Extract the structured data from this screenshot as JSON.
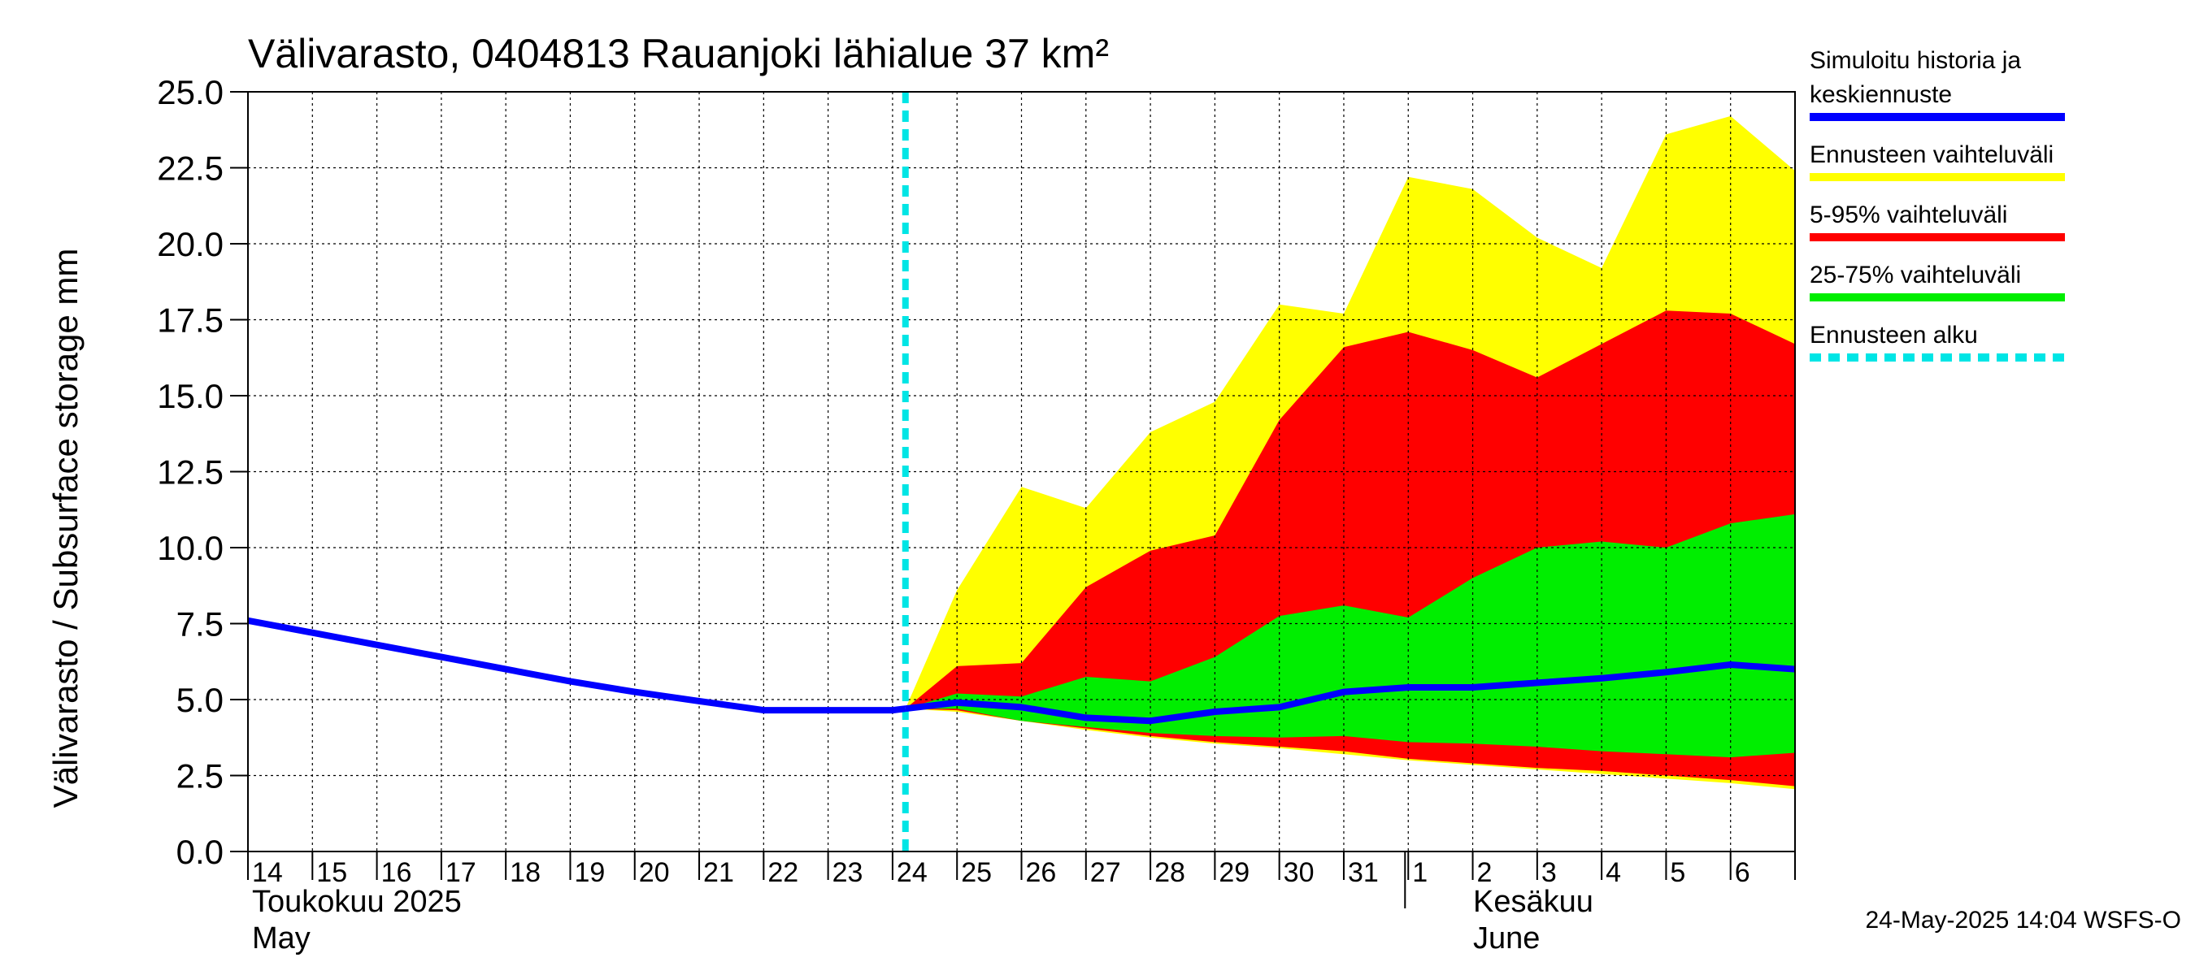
{
  "chart_data": {
    "type": "area",
    "title": "Välivarasto, 0404813 Rauanjoki lähialue 37 km²",
    "ylabel": "Välivarasto / Subsurface storage  mm",
    "ylim": [
      0,
      25
    ],
    "xlim": [
      0,
      24
    ],
    "yticks": [
      "0.0",
      "2.5",
      "5.0",
      "7.5",
      "10.0",
      "12.5",
      "15.0",
      "17.5",
      "20.0",
      "22.5",
      "25.0"
    ],
    "day_labels": [
      "14",
      "15",
      "16",
      "17",
      "18",
      "19",
      "20",
      "21",
      "22",
      "23",
      "24",
      "25",
      "26",
      "27",
      "28",
      "29",
      "30",
      "31",
      "1",
      "2",
      "3",
      "4",
      "5",
      "6"
    ],
    "month_labels": {
      "may_fi": "Toukokuu  2025",
      "may_en": "May",
      "june_fi": "Kesäkuu",
      "june_en": "June"
    },
    "forecast_start_day": 10.2,
    "history": {
      "x": [
        0,
        1,
        2,
        3,
        4,
        5,
        6,
        7,
        8,
        9,
        10,
        10.2
      ],
      "y": [
        7.6,
        7.2,
        6.8,
        6.4,
        6.0,
        5.6,
        5.25,
        4.95,
        4.65,
        4.65,
        4.65,
        4.7
      ]
    },
    "forecast_x": [
      10.2,
      11,
      12,
      13,
      14,
      15,
      16,
      17,
      18,
      19,
      20,
      21,
      22,
      23,
      24
    ],
    "median": [
      4.7,
      4.9,
      4.75,
      4.4,
      4.3,
      4.6,
      4.75,
      5.25,
      5.4,
      5.4,
      5.55,
      5.7,
      5.9,
      6.15,
      6.0
    ],
    "range_min_max": {
      "upper": [
        4.7,
        8.6,
        12.0,
        11.3,
        13.8,
        14.8,
        18.0,
        17.7,
        22.2,
        21.8,
        20.2,
        19.2,
        23.6,
        24.2,
        22.4
      ],
      "lower": [
        4.7,
        4.6,
        4.3,
        4.0,
        3.75,
        3.55,
        3.4,
        3.2,
        3.0,
        2.85,
        2.7,
        2.55,
        2.4,
        2.25,
        2.05
      ]
    },
    "range_5_95": {
      "upper": [
        4.7,
        6.1,
        6.2,
        8.7,
        9.9,
        10.4,
        14.2,
        16.6,
        17.1,
        16.5,
        15.6,
        16.7,
        17.8,
        17.7,
        16.7
      ],
      "lower": [
        4.7,
        4.65,
        4.3,
        4.05,
        3.8,
        3.6,
        3.45,
        3.3,
        3.05,
        2.9,
        2.75,
        2.65,
        2.5,
        2.35,
        2.15
      ]
    },
    "range_25_75": {
      "upper": [
        4.7,
        5.2,
        5.1,
        5.75,
        5.6,
        6.4,
        7.75,
        8.1,
        7.7,
        9.0,
        10.0,
        10.2,
        10.0,
        10.8,
        11.1
      ],
      "lower": [
        4.7,
        4.7,
        4.3,
        4.1,
        3.9,
        3.8,
        3.75,
        3.8,
        3.6,
        3.55,
        3.45,
        3.3,
        3.2,
        3.1,
        3.25
      ]
    },
    "legend": [
      {
        "label_lines": [
          "Simuloitu historia ja",
          "keskiennuste"
        ],
        "color": "#0000ff",
        "style": "solid"
      },
      {
        "label_lines": [
          "Ennusteen vaihteluväli"
        ],
        "color": "#ffff00",
        "style": "solid"
      },
      {
        "label_lines": [
          "5-95% vaihteluväli"
        ],
        "color": "#ff0000",
        "style": "solid"
      },
      {
        "label_lines": [
          "25-75% vaihteluväli"
        ],
        "color": "#00ee00",
        "style": "solid"
      },
      {
        "label_lines": [
          "Ennusteen alku"
        ],
        "color": "#00e5e5",
        "style": "dashed"
      }
    ],
    "footer": "24-May-2025 14:04 WSFS-O"
  },
  "colors": {
    "median": "#0000ff",
    "range": "#ffff00",
    "p5_95": "#ff0000",
    "p25_75": "#00ee00",
    "forecast_line": "#00e5e5",
    "grid": "#000000"
  }
}
